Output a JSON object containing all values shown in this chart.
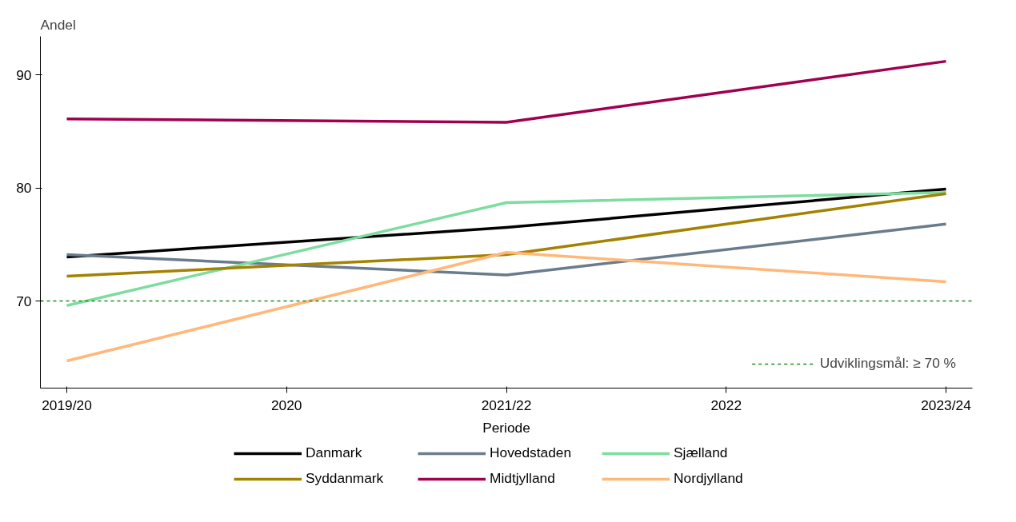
{
  "chart_data": {
    "type": "line",
    "xlabel": "Periode",
    "ylabel": "Andel",
    "categories": [
      "2019/20",
      "2020",
      "2021/22",
      "2022",
      "2023/24"
    ],
    "ylim": [
      62.3,
      93.4
    ],
    "yticks": [
      70,
      80,
      90
    ],
    "legend": "bottom",
    "line_style": "solid",
    "series": [
      {
        "name": "Danmark",
        "color": "#000000",
        "x": [
          "2019/20",
          "2021/22",
          "2023/24"
        ],
        "values": [
          73.9,
          76.5,
          79.9
        ]
      },
      {
        "name": "Hovedstaden",
        "color": "#6a7b8c",
        "x": [
          "2019/20",
          "2021/22",
          "2023/24"
        ],
        "values": [
          74.1,
          72.3,
          76.8
        ]
      },
      {
        "name": "Sjælland",
        "color": "#7ddca0",
        "x": [
          "2019/20",
          "2021/22",
          "2023/24"
        ],
        "values": [
          69.6,
          78.7,
          79.6
        ]
      },
      {
        "name": "Syddanmark",
        "color": "#a38200",
        "x": [
          "2019/20",
          "2021/22",
          "2023/24"
        ],
        "values": [
          72.2,
          74.1,
          79.5
        ]
      },
      {
        "name": "Midtjylland",
        "color": "#a0004f",
        "x": [
          "2019/20",
          "2021/22",
          "2023/24"
        ],
        "values": [
          86.1,
          85.8,
          91.2
        ]
      },
      {
        "name": "Nordjylland",
        "color": "#ffb87a",
        "x": [
          "2019/20",
          "2021/22",
          "2023/24"
        ],
        "values": [
          64.7,
          74.3,
          71.7
        ]
      }
    ],
    "ref_lines": [
      {
        "axis": "y",
        "value": 70,
        "label": "Udviklingsmål: ≥ 70 %",
        "color": "#1f8c1f",
        "line_style": "dashed"
      }
    ]
  }
}
